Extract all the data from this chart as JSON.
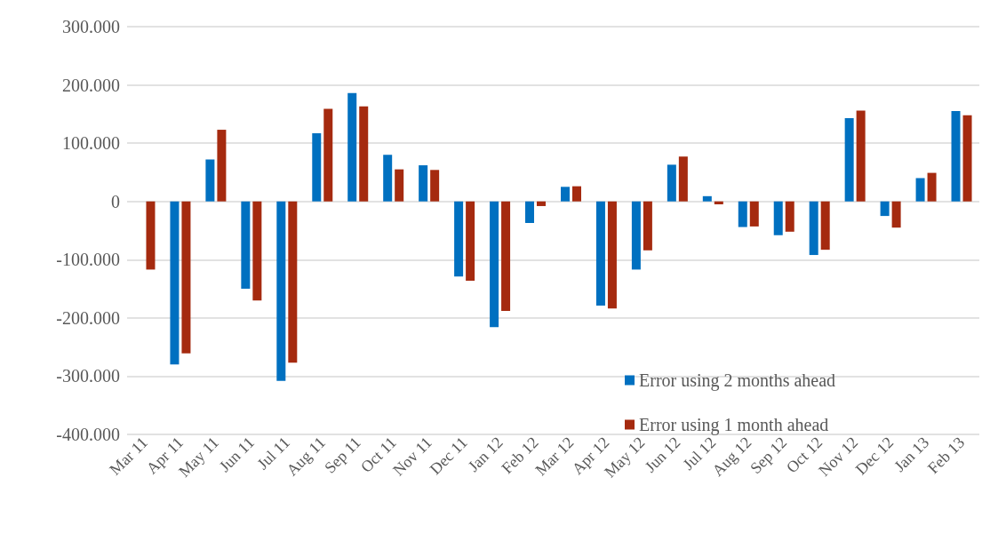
{
  "chart_data": {
    "type": "bar",
    "categories": [
      "Mar 11",
      "Apr 11",
      "May 11",
      "Jun 11",
      "Jul 11",
      "Aug 11",
      "Sep 11",
      "Oct 11",
      "Nov 11",
      "Dec 11",
      "Jan 12",
      "Feb 12",
      "Mar 12",
      "Apr 12",
      "May 12",
      "Jun 12",
      "Jul 12",
      "Aug 12",
      "Sep 12",
      "Oct 12",
      "Nov 12",
      "Dec 12",
      "Jan 13",
      "Feb 13"
    ],
    "series": [
      {
        "name": "Error using 2 months ahead",
        "color": "#0070c0",
        "values": [
          null,
          -280000,
          72000,
          -150000,
          -308000,
          117000,
          186000,
          80000,
          62000,
          -129000,
          -216000,
          -37000,
          25000,
          -179000,
          -117000,
          63000,
          9000,
          -44000,
          -58000,
          -92000,
          143000,
          -25000,
          40000,
          155000
        ]
      },
      {
        "name": "Error using 1 month ahead",
        "color": "#a52a0f",
        "values": [
          -117000,
          -261000,
          123000,
          -170000,
          -277000,
          159000,
          163000,
          55000,
          54000,
          -136000,
          -188000,
          -8000,
          26000,
          -184000,
          -84000,
          77000,
          -5000,
          -43000,
          -52000,
          -83000,
          156000,
          -45000,
          49000,
          148000
        ]
      }
    ],
    "ylim": [
      -400000,
      300000
    ],
    "yticks": [
      {
        "value": -400000,
        "label": "-400.000"
      },
      {
        "value": -300000,
        "label": "-300.000"
      },
      {
        "value": -200000,
        "label": "-200.000"
      },
      {
        "value": -100000,
        "label": "-100.000"
      },
      0,
      {
        "value": 100000,
        "label": "100.000"
      },
      {
        "value": 200000,
        "label": "200.000"
      },
      {
        "value": 300000,
        "label": "300.000"
      }
    ],
    "grid": "y",
    "legend": "bottom right"
  }
}
